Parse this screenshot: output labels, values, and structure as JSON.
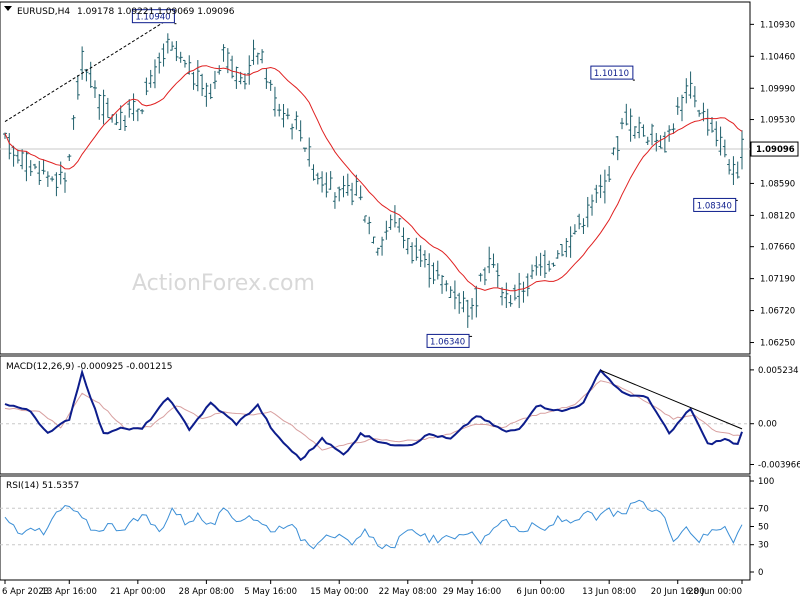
{
  "header": {
    "symbol": "EURUSD,H4",
    "ohlc": "1.09178 1.09221 1.09069 1.09096"
  },
  "watermark": "ActionForex.com",
  "colors": {
    "bars": "#1f5f6b",
    "sma": "#e02020",
    "macd": "#0d1d8c",
    "signal": "#d8a0a0",
    "rsi": "#3c8fd6",
    "frame": "#000000",
    "grid": "#c8c8c8",
    "label_box": "#0d1d8c"
  },
  "chart_data": [
    {
      "type": "ohlc",
      "panel": "price",
      "title": "EURUSD,H4",
      "ylim": [
        1.0614,
        1.112
      ],
      "yticks": [
        "1.10930",
        "1.10460",
        "1.09990",
        "1.09530",
        "1.08590",
        "1.08120",
        "1.07660",
        "1.07190",
        "1.06720",
        "1.06250"
      ],
      "ytick_values": [
        1.1093,
        1.1046,
        1.0999,
        1.0953,
        1.0859,
        1.0812,
        1.0766,
        1.0719,
        1.0672,
        1.0625
      ],
      "current_price": "1.09096",
      "current_value": 1.09096,
      "labels": [
        {
          "text": "1.10940",
          "value": 1.1094,
          "bar": 40
        },
        {
          "text": "1.10110",
          "value": 1.1011,
          "bar": 147
        },
        {
          "text": "1.08340",
          "value": 1.0834,
          "bar": 171
        },
        {
          "text": "1.06340",
          "value": 1.0634,
          "bar": 109
        }
      ],
      "trendline_bars": [
        0,
        38
      ],
      "trendline_values": [
        1.095,
        1.11
      ],
      "anchors_bar": [
        0,
        7,
        14,
        18,
        22,
        27,
        32,
        38,
        42,
        48,
        51,
        55,
        59,
        63,
        69,
        72,
        78,
        82,
        87,
        91,
        95,
        101,
        105,
        109,
        113,
        117,
        120,
        124,
        128,
        132,
        137,
        140,
        145,
        147,
        151,
        154,
        158,
        160,
        163,
        167,
        171,
        172
      ],
      "anchors_value": [
        1.092,
        1.088,
        1.086,
        1.104,
        1.098,
        1.095,
        1.098,
        1.106,
        1.103,
        1.099,
        1.106,
        1.1,
        1.106,
        1.098,
        1.094,
        1.088,
        1.084,
        1.085,
        1.077,
        1.081,
        1.076,
        1.072,
        1.07,
        1.067,
        1.075,
        1.069,
        1.07,
        1.073,
        1.075,
        1.078,
        1.083,
        1.086,
        1.096,
        1.094,
        1.093,
        1.092,
        1.098,
        1.1,
        1.096,
        1.092,
        1.086,
        1.091
      ],
      "sma_label": "",
      "bar_count": 173
    },
    {
      "type": "line",
      "panel": "macd",
      "title": "MACD(12,26,9) -0.000925 -0.001215",
      "ylim": [
        -0.0045,
        0.006
      ],
      "yticks": [
        "0.005234",
        "0.00",
        "-0.003966"
      ],
      "ytick_values": [
        0.005234,
        0.0,
        -0.003966
      ],
      "series": [
        {
          "name": "MACD",
          "x": [
            0,
            6,
            10,
            15,
            18,
            23,
            26,
            32,
            38,
            43,
            48,
            54,
            59,
            63,
            69,
            74,
            79,
            83,
            89,
            95,
            99,
            104,
            110,
            117,
            120,
            124,
            130,
            135,
            139,
            144,
            150,
            155,
            160,
            164,
            168,
            171,
            172
          ],
          "y": [
            0.002,
            0.0012,
            -0.001,
            0.0005,
            0.005,
            -0.001,
            -0.0005,
            -0.0005,
            0.0025,
            -0.0005,
            0.002,
            0.0,
            0.0018,
            -0.001,
            -0.0035,
            -0.0015,
            -0.003,
            -0.001,
            -0.002,
            -0.002,
            -0.001,
            -0.0015,
            0.0008,
            -0.0008,
            -0.0005,
            0.0018,
            0.0012,
            0.002,
            0.0052,
            0.003,
            0.0025,
            -0.001,
            0.0015,
            -0.002,
            -0.0015,
            -0.002,
            -0.0009
          ]
        },
        {
          "name": "Signal",
          "x": [
            0,
            8,
            13,
            18,
            22,
            28,
            34,
            40,
            46,
            51,
            57,
            62,
            68,
            74,
            80,
            86,
            92,
            98,
            104,
            110,
            116,
            121,
            127,
            133,
            139,
            144,
            150,
            156,
            161,
            166,
            172
          ],
          "y": [
            0.0015,
            0.0012,
            -0.0004,
            0.003,
            0.002,
            -0.0005,
            -0.0003,
            0.0018,
            0.0005,
            0.0012,
            0.0008,
            0.0012,
            -0.0005,
            -0.0025,
            -0.002,
            -0.0015,
            -0.0017,
            -0.0015,
            -0.001,
            0.0,
            -0.0004,
            0.0005,
            0.0012,
            0.0018,
            0.0042,
            0.0035,
            0.002,
            0.0005,
            0.0008,
            -0.0008,
            -0.0012
          ]
        }
      ],
      "trendline_x": [
        139,
        172
      ],
      "trendline_y": [
        0.0052,
        -0.0005
      ]
    },
    {
      "type": "line",
      "panel": "rsi",
      "title": "RSI(14) 51.5357",
      "ylim": [
        0,
        100
      ],
      "yticks": [
        "100",
        "70",
        "50",
        "30",
        "0"
      ],
      "ytick_values": [
        100,
        70,
        50,
        30,
        0
      ],
      "series": [
        {
          "name": "RSI",
          "x": [
            0,
            3,
            6,
            9,
            12,
            15,
            18,
            21,
            24,
            27,
            30,
            33,
            36,
            39,
            42,
            45,
            48,
            51,
            54,
            57,
            60,
            63,
            66,
            69,
            72,
            75,
            78,
            81,
            84,
            87,
            90,
            93,
            96,
            99,
            102,
            105,
            108,
            111,
            114,
            117,
            120,
            123,
            126,
            129,
            132,
            135,
            138,
            141,
            144,
            147,
            150,
            153,
            156,
            159,
            162,
            165,
            168,
            170,
            172
          ],
          "y": [
            58,
            42,
            52,
            40,
            65,
            72,
            58,
            45,
            52,
            48,
            56,
            60,
            44,
            70,
            55,
            62,
            50,
            66,
            57,
            63,
            52,
            46,
            55,
            38,
            30,
            44,
            38,
            28,
            43,
            32,
            26,
            40,
            46,
            37,
            34,
            40,
            45,
            32,
            50,
            60,
            43,
            50,
            45,
            58,
            55,
            65,
            58,
            68,
            60,
            78,
            70,
            66,
            38,
            50,
            35,
            45,
            52,
            36,
            51
          ]
        }
      ]
    }
  ],
  "xaxis": {
    "labels": [
      "6 Apr 2023",
      "13 Apr 16:00",
      "21 Apr 00:00",
      "28 Apr 08:00",
      "5 May 16:00",
      "15 May 00:00",
      "22 May 08:00",
      "29 May 16:00",
      "6 Jun 00:00",
      "13 Jun 08:00",
      "20 Jun 16:00",
      "28 Jun 00:00"
    ],
    "label_bars": [
      0,
      15,
      31,
      47,
      62,
      78,
      94,
      109,
      125,
      141,
      157,
      172
    ]
  }
}
